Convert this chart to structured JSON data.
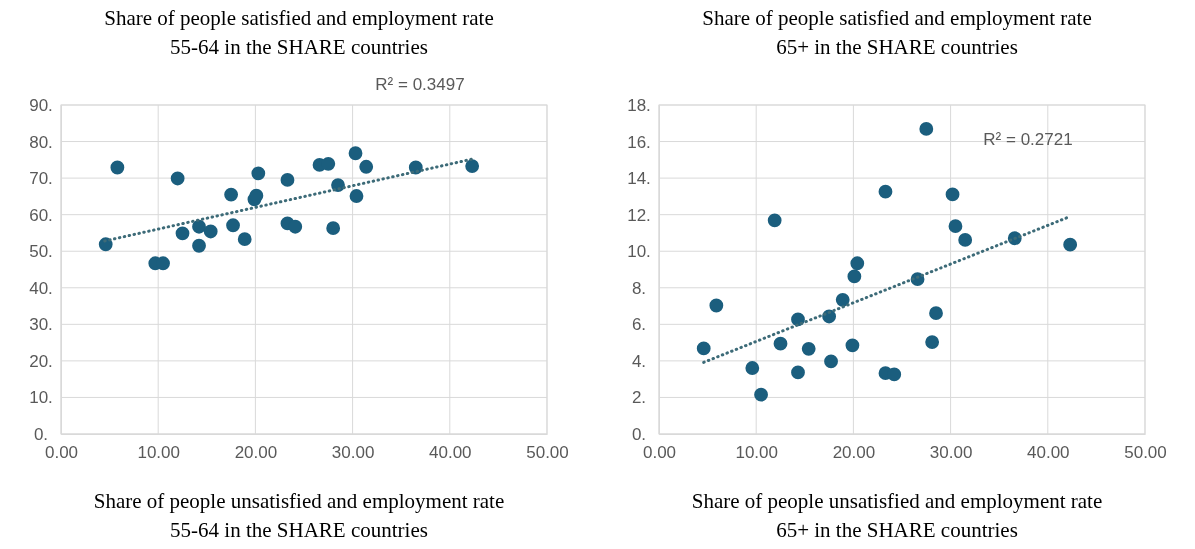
{
  "chart_data": [
    {
      "type": "scatter",
      "title": "Share of people satisfied and employment rate\n55-64 in the SHARE countries",
      "xlabel": "Share of people unsatisfied and employment rate\n55-64 in the SHARE countries",
      "annotations": [
        "R² = 0.3497"
      ],
      "xlim": [
        0,
        50
      ],
      "xticks": [
        {
          "value": 0,
          "label": "0.00"
        },
        {
          "value": 10,
          "label": "10.00"
        },
        {
          "value": 20,
          "label": "20.00"
        },
        {
          "value": 30,
          "label": "30.00"
        },
        {
          "value": 40,
          "label": "40.00"
        },
        {
          "value": 50,
          "label": "50.00"
        }
      ],
      "ylim": [
        0,
        90
      ],
      "yticks": [
        {
          "value": 0,
          "label": "0."
        },
        {
          "value": 10,
          "label": "10."
        },
        {
          "value": 20,
          "label": "20."
        },
        {
          "value": 30,
          "label": "30."
        },
        {
          "value": 40,
          "label": "40."
        },
        {
          "value": 50,
          "label": "50."
        },
        {
          "value": 60,
          "label": "60."
        },
        {
          "value": 70,
          "label": "70."
        },
        {
          "value": 80,
          "label": "80."
        },
        {
          "value": 90,
          "label": "90."
        }
      ],
      "grid": true,
      "marker": "circle",
      "series": [
        {
          "color": "#1b5e7e",
          "x": [
            4.6,
            5.8,
            9.7,
            10.5,
            12.0,
            12.5,
            14.2,
            14.2,
            15.4,
            17.5,
            17.7,
            18.9,
            19.9,
            20.1,
            20.3,
            23.3,
            23.3,
            24.1,
            26.6,
            27.5,
            28.5,
            28.0,
            30.3,
            30.4,
            31.4,
            36.5,
            42.3
          ],
          "values": [
            51.9,
            72.9,
            46.7,
            46.7,
            69.9,
            54.9,
            56.7,
            51.5,
            55.4,
            65.5,
            57.1,
            53.3,
            64.2,
            65.2,
            71.3,
            69.5,
            57.6,
            56.7,
            73.6,
            73.9,
            68.1,
            56.3,
            76.8,
            65.1,
            73.1,
            72.9,
            73.3
          ]
        },
        {
          "type": "line",
          "color": "#3d6b78",
          "line_style": "dotted",
          "marker": "none",
          "x": [
            4.5,
            42.3
          ],
          "values": [
            52.8,
            75.2
          ]
        }
      ]
    },
    {
      "type": "scatter",
      "title": "Share of people satisfied and employment rate\n65+ in the SHARE countries",
      "xlabel": "Share of people unsatisfied and employment rate\n65+ in the SHARE countries",
      "annotations": [
        "R² = 0.2721"
      ],
      "xlim": [
        0,
        50
      ],
      "xticks": [
        {
          "value": 0,
          "label": "0.00"
        },
        {
          "value": 10,
          "label": "10.00"
        },
        {
          "value": 20,
          "label": "20.00"
        },
        {
          "value": 30,
          "label": "30.00"
        },
        {
          "value": 40,
          "label": "40.00"
        },
        {
          "value": 50,
          "label": "50.00"
        }
      ],
      "ylim": [
        0,
        18
      ],
      "yticks": [
        {
          "value": 0,
          "label": "0."
        },
        {
          "value": 2,
          "label": "2."
        },
        {
          "value": 4,
          "label": "4."
        },
        {
          "value": 6,
          "label": "6."
        },
        {
          "value": 8,
          "label": "8."
        },
        {
          "value": 10,
          "label": "10."
        },
        {
          "value": 12,
          "label": "12."
        },
        {
          "value": 14,
          "label": "14."
        },
        {
          "value": 16,
          "label": "16."
        },
        {
          "value": 18,
          "label": "18."
        }
      ],
      "grid": true,
      "marker": "circle",
      "series": [
        {
          "color": "#1b5e7e",
          "x": [
            4.6,
            5.9,
            9.6,
            10.5,
            11.9,
            12.5,
            14.3,
            14.3,
            15.4,
            17.5,
            17.7,
            18.9,
            19.9,
            20.1,
            20.4,
            23.3,
            23.3,
            24.2,
            27.5,
            26.6,
            28.5,
            28.1,
            30.2,
            30.5,
            31.5,
            36.6,
            42.3
          ],
          "values": [
            4.68,
            7.03,
            3.61,
            2.15,
            11.69,
            4.94,
            6.27,
            3.37,
            4.66,
            6.43,
            3.97,
            7.34,
            4.85,
            8.62,
            9.34,
            13.26,
            3.33,
            3.26,
            16.69,
            8.47,
            6.61,
            5.03,
            13.11,
            11.37,
            10.62,
            10.71,
            10.36
          ]
        },
        {
          "type": "line",
          "color": "#3d6b78",
          "line_style": "dotted",
          "marker": "none",
          "x": [
            4.6,
            42.1
          ],
          "values": [
            3.92,
            11.86
          ]
        }
      ]
    }
  ]
}
